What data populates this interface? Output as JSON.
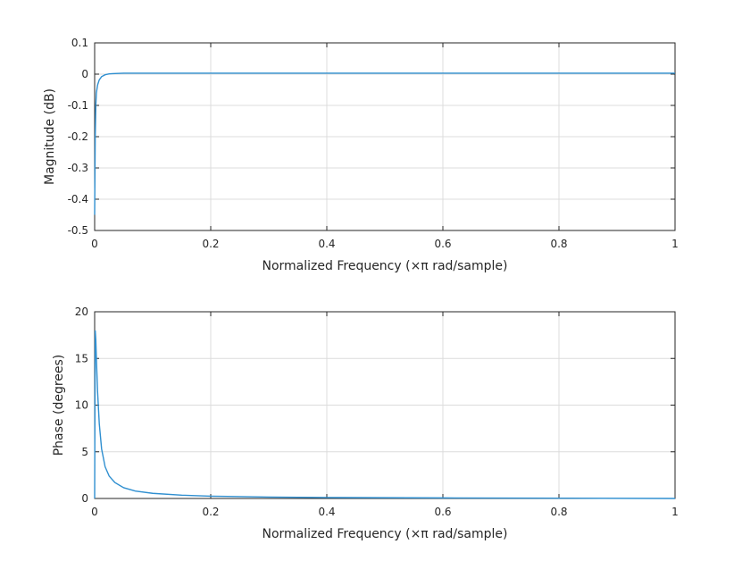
{
  "chart_data": [
    {
      "type": "line",
      "xlabel": "Normalized Frequency (×π rad/sample)",
      "ylabel": "Magnitude (dB)",
      "xlim": [
        0,
        1
      ],
      "ylim": [
        -0.5,
        0.1
      ],
      "xticks": [
        0,
        0.2,
        0.4,
        0.6,
        0.8,
        1
      ],
      "xtick_labels": [
        "0",
        "0.2",
        "0.4",
        "0.6",
        "0.8",
        "1"
      ],
      "yticks": [
        -0.5,
        -0.4,
        -0.3,
        -0.2,
        -0.1,
        0,
        0.1
      ],
      "ytick_labels": [
        "-0.5",
        "-0.4",
        "-0.3",
        "-0.2",
        "-0.1",
        "0",
        "0.1"
      ],
      "grid": true,
      "color": "#2f8fd0",
      "series": [
        {
          "x": [
            0,
            0.001,
            0.002,
            0.003,
            0.005,
            0.008,
            0.012,
            0.018,
            0.025,
            0.035,
            0.05,
            0.1,
            0.2,
            0.4,
            0.6,
            0.8,
            1.0
          ],
          "y": [
            -0.45,
            -0.2,
            -0.1,
            -0.06,
            -0.035,
            -0.018,
            -0.008,
            -0.002,
            0.001,
            0.002,
            0.003,
            0.003,
            0.003,
            0.003,
            0.003,
            0.003,
            0.003
          ]
        }
      ]
    },
    {
      "type": "line",
      "xlabel": "Normalized Frequency (×π rad/sample)",
      "ylabel": "Phase (degrees)",
      "xlim": [
        0,
        1
      ],
      "ylim": [
        0,
        20
      ],
      "xticks": [
        0,
        0.2,
        0.4,
        0.6,
        0.8,
        1
      ],
      "xtick_labels": [
        "0",
        "0.2",
        "0.4",
        "0.6",
        "0.8",
        "1"
      ],
      "yticks": [
        0,
        5,
        10,
        15,
        20
      ],
      "ytick_labels": [
        "0",
        "5",
        "10",
        "15",
        "20"
      ],
      "grid": true,
      "color": "#2f8fd0",
      "series": [
        {
          "x": [
            0,
            0.001,
            0.002,
            0.003,
            0.005,
            0.008,
            0.012,
            0.018,
            0.025,
            0.035,
            0.05,
            0.07,
            0.1,
            0.15,
            0.2,
            0.3,
            0.4,
            0.6,
            0.8,
            1.0
          ],
          "y": [
            0,
            18,
            17,
            15,
            11.5,
            8,
            5.3,
            3.4,
            2.4,
            1.7,
            1.15,
            0.8,
            0.55,
            0.35,
            0.25,
            0.15,
            0.1,
            0.06,
            0.03,
            0
          ]
        }
      ]
    }
  ]
}
